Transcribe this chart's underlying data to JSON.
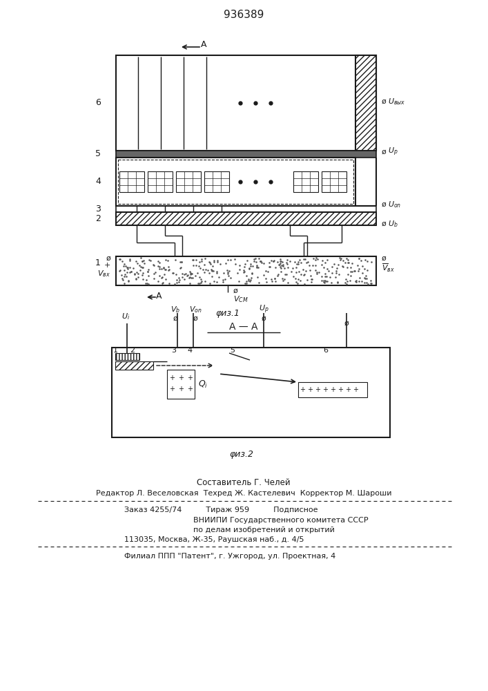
{
  "title": "936389",
  "fig1_caption": "φиз.1",
  "fig2_caption": "φиз.2",
  "section_label": "A — A",
  "bg_color": "#ffffff",
  "line_color": "#1a1a1a",
  "footnote_lines": [
    "Составитель Г. Челей",
    "Редактор Л. Веселовская  Техред Ж. Кастелевич  Корректор М. Шароши",
    "Заказ 4255/74          Тираж 959          Подписное",
    "ВНИИПИ Государственного комитета СССР",
    "по делам изобретений и открытий",
    "113035, Москва, Ж-35, Раушская наб., д. 4/5",
    "Филиал ППП \"Патент\", г. Ужгород, ул. Проектная, 4"
  ]
}
